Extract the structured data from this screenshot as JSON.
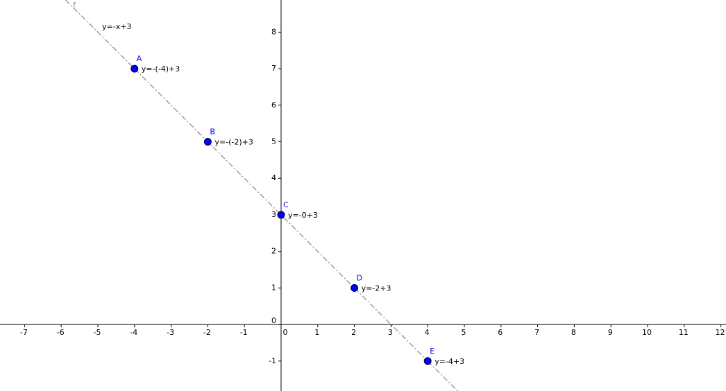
{
  "chart_data": {
    "type": "scatter",
    "line": {
      "label": "f",
      "equation": "y=-x+3",
      "color": "#888888"
    },
    "points": {
      "labels": [
        "A",
        "B",
        "C",
        "D",
        "E"
      ],
      "x": [
        -4,
        -2,
        0,
        2,
        4
      ],
      "y": [
        7,
        5,
        3,
        1,
        -1
      ],
      "annotations": [
        "y=-(-4)+3",
        "y=-(-2)+3",
        "y=-0+3",
        "y=-2+3",
        "y=-4+3"
      ],
      "color": "#0000ff"
    },
    "xlim": [
      -7.67,
      12.14
    ],
    "ylim": [
      -1.82,
      8.88
    ],
    "xticks": [
      -7,
      -6,
      -5,
      -4,
      -3,
      -2,
      -1,
      0,
      1,
      2,
      3,
      4,
      5,
      6,
      7,
      8,
      9,
      10,
      11,
      12
    ],
    "yticks": [
      -1,
      0,
      1,
      2,
      3,
      4,
      5,
      6,
      7,
      8
    ]
  }
}
